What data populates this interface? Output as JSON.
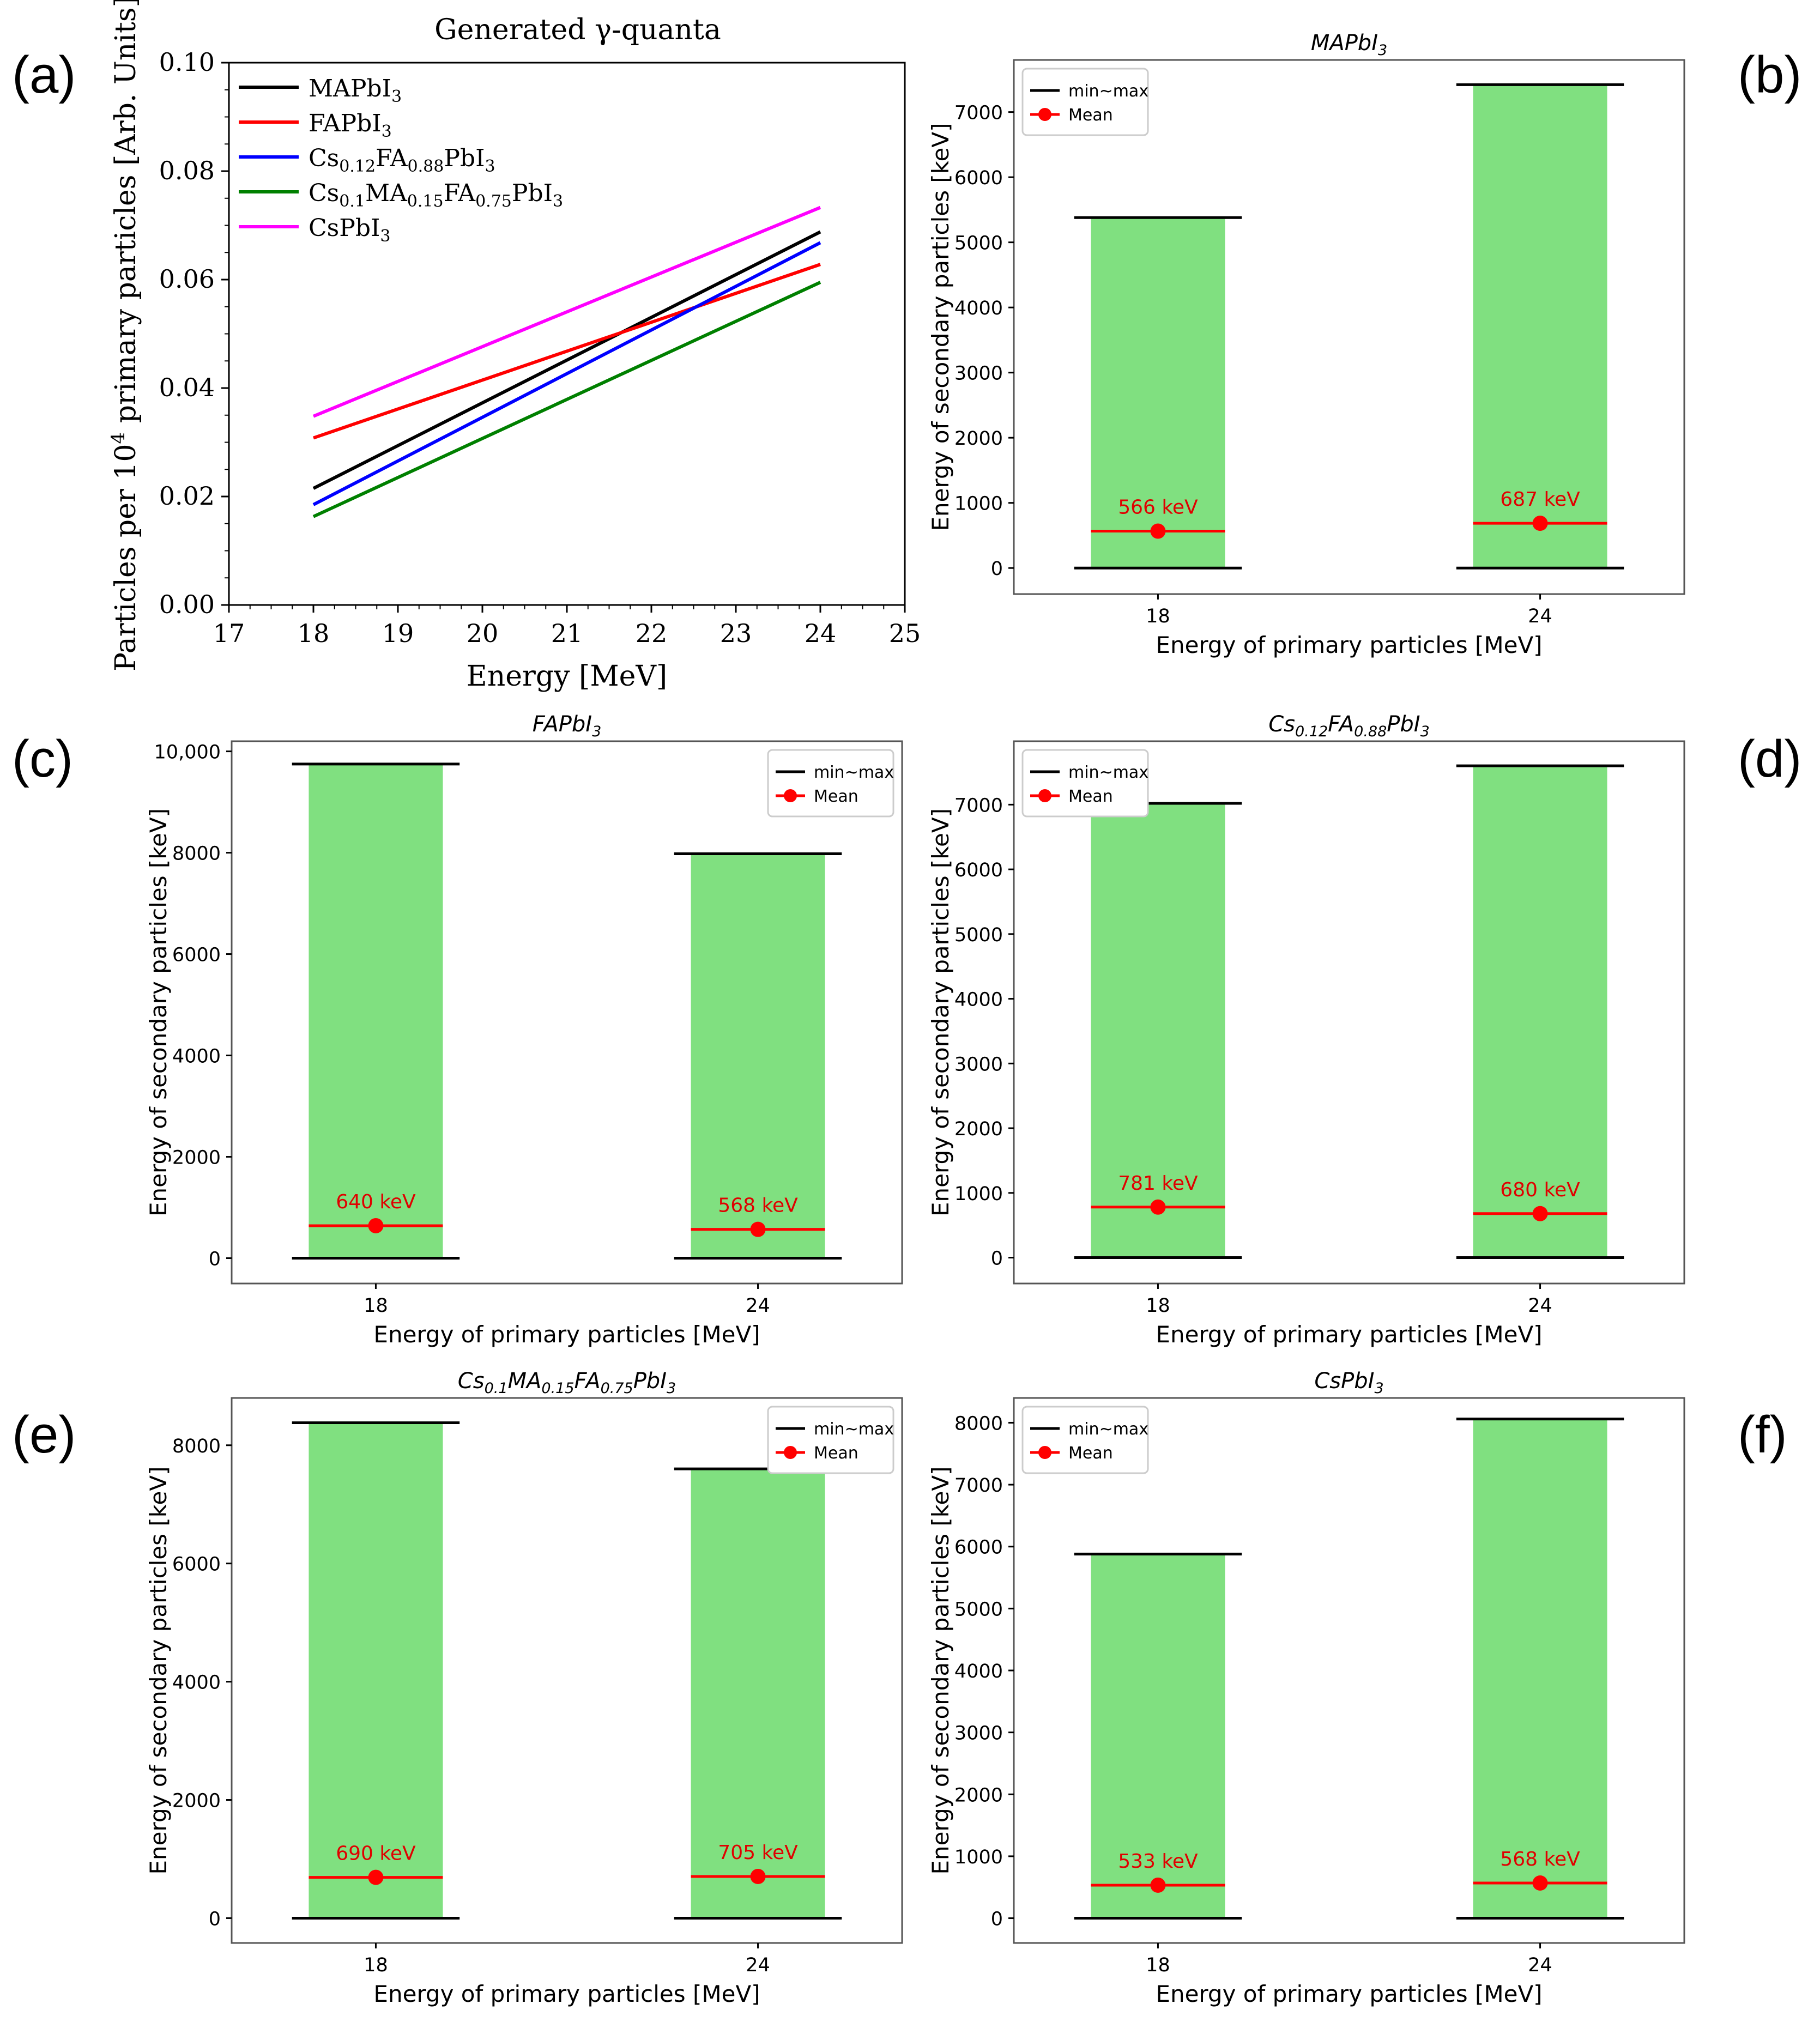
{
  "panel_labels": [
    "(a)",
    "(b)",
    "(c)",
    "(d)",
    "(e)",
    "(f)"
  ],
  "chart_data": [
    {
      "type": "line",
      "title": "Generated γ-quanta",
      "xlabel": "Energy [MeV]",
      "ylabel_pre": "Particles per 10",
      "ylabel_sup": "4",
      "ylabel_post": " primary particles [Arb. Units]",
      "xlim": [
        17,
        25
      ],
      "ylim": [
        0,
        0.1
      ],
      "xticks": [
        "17",
        "18",
        "19",
        "20",
        "21",
        "22",
        "23",
        "24",
        "25"
      ],
      "yticks": [
        "0.00",
        "0.02",
        "0.04",
        "0.06",
        "0.08",
        "0.10"
      ],
      "x": [
        18,
        24
      ],
      "series": [
        {
          "name": "MAPbI3",
          "color": "#000000",
          "values": [
            0.0215,
            0.0688
          ],
          "legend": [
            {
              "t": "MAPbI"
            },
            {
              "t": "3",
              "sub": true
            }
          ]
        },
        {
          "name": "FAPbI3",
          "color": "#ff0000",
          "values": [
            0.0308,
            0.0628
          ],
          "legend": [
            {
              "t": "FAPbI"
            },
            {
              "t": "3",
              "sub": true
            }
          ]
        },
        {
          "name": "Cs0.12FA0.88PbI3",
          "color": "#0000ff",
          "values": [
            0.0185,
            0.0668
          ],
          "legend": [
            {
              "t": "Cs"
            },
            {
              "t": "0.12",
              "sub": true
            },
            {
              "t": "FA"
            },
            {
              "t": "0.88",
              "sub": true
            },
            {
              "t": "PbI"
            },
            {
              "t": "3",
              "sub": true
            }
          ]
        },
        {
          "name": "Cs0.1MA0.15FA0.75PbI3",
          "color": "#008000",
          "values": [
            0.0163,
            0.0595
          ],
          "legend": [
            {
              "t": "Cs"
            },
            {
              "t": "0.1",
              "sub": true
            },
            {
              "t": "MA"
            },
            {
              "t": "0.15",
              "sub": true
            },
            {
              "t": "FA"
            },
            {
              "t": "0.75",
              "sub": true
            },
            {
              "t": "PbI"
            },
            {
              "t": "3",
              "sub": true
            }
          ]
        },
        {
          "name": "CsPbI3",
          "color": "#ff00ff",
          "values": [
            0.0348,
            0.0733
          ],
          "legend": [
            {
              "t": "CsPbI"
            },
            {
              "t": "3",
              "sub": true
            }
          ]
        }
      ],
      "legend_position": "upper-left"
    },
    {
      "type": "bar",
      "title": "MAPbI3",
      "title_parts": [
        {
          "t": "MAPbI"
        },
        {
          "t": "3",
          "sub": true
        }
      ],
      "xlabel": "Energy of primary particles [MeV]",
      "ylabel": "Energy of secondary particles [keV]",
      "ylim": [
        -400,
        7800
      ],
      "yticks": [
        0,
        1000,
        2000,
        3000,
        4000,
        5000,
        6000,
        7000
      ],
      "categories": [
        "18",
        "24"
      ],
      "min": [
        0,
        0
      ],
      "max": [
        5380,
        7420
      ],
      "mean": [
        566,
        687
      ],
      "mean_labels": [
        "566 keV",
        "687 keV"
      ],
      "legend": [
        "min~max",
        "Mean"
      ],
      "legend_position": "upper-left"
    },
    {
      "type": "bar",
      "title": "FAPbI3",
      "title_parts": [
        {
          "t": "FAPbI"
        },
        {
          "t": "3",
          "sub": true
        }
      ],
      "xlabel": "Energy of primary particles [MeV]",
      "ylabel": "Energy of secondary particles [keV]",
      "ylim": [
        -500,
        10200
      ],
      "yticks": [
        0,
        2000,
        4000,
        6000,
        8000,
        10000
      ],
      "ytick_labels": [
        "0",
        "2000",
        "4000",
        "6000",
        "8000",
        "10,000"
      ],
      "categories": [
        "18",
        "24"
      ],
      "min": [
        0,
        0
      ],
      "max": [
        9750,
        7980
      ],
      "mean": [
        640,
        568
      ],
      "mean_labels": [
        "640 keV",
        "568 keV"
      ],
      "legend": [
        "min~max",
        "Mean"
      ],
      "legend_position": "upper-right"
    },
    {
      "type": "bar",
      "title": "Cs0.12FA0.88PbI3",
      "title_parts": [
        {
          "t": "Cs"
        },
        {
          "t": "0.12",
          "sub": true
        },
        {
          "t": "FA"
        },
        {
          "t": "0.88",
          "sub": true
        },
        {
          "t": "PbI"
        },
        {
          "t": "3",
          "sub": true
        }
      ],
      "xlabel": "Energy of primary particles [MeV]",
      "ylabel": "Energy of secondary particles [keV]",
      "ylim": [
        -400,
        7980
      ],
      "yticks": [
        0,
        1000,
        2000,
        3000,
        4000,
        5000,
        6000,
        7000
      ],
      "categories": [
        "18",
        "24"
      ],
      "min": [
        0,
        0
      ],
      "max": [
        7020,
        7600
      ],
      "mean": [
        781,
        680
      ],
      "mean_labels": [
        "781 keV",
        "680 keV"
      ],
      "legend": [
        "min~max",
        "Mean"
      ],
      "legend_position": "upper-left"
    },
    {
      "type": "bar",
      "title": "Cs0.1MA0.15FA0.75PbI3",
      "title_parts": [
        {
          "t": "Cs"
        },
        {
          "t": "0.1",
          "sub": true
        },
        {
          "t": "MA"
        },
        {
          "t": "0.15",
          "sub": true
        },
        {
          "t": "FA"
        },
        {
          "t": "0.75",
          "sub": true
        },
        {
          "t": "PbI"
        },
        {
          "t": "3",
          "sub": true
        }
      ],
      "xlabel": "Energy of primary particles [MeV]",
      "ylabel": "Energy of secondary particles [keV]",
      "ylim": [
        -420,
        8800
      ],
      "yticks": [
        0,
        2000,
        4000,
        6000,
        8000
      ],
      "categories": [
        "18",
        "24"
      ],
      "min": [
        0,
        0
      ],
      "max": [
        8380,
        7600
      ],
      "mean": [
        690,
        705
      ],
      "mean_labels": [
        "690 keV",
        "705 keV"
      ],
      "legend": [
        "min~max",
        "Mean"
      ],
      "legend_position": "upper-right"
    },
    {
      "type": "bar",
      "title": "CsPbI3",
      "title_parts": [
        {
          "t": "CsPbI"
        },
        {
          "t": "3",
          "sub": true
        }
      ],
      "xlabel": "Energy of primary particles [MeV]",
      "ylabel": "Energy of secondary particles [keV]",
      "ylim": [
        -400,
        8400
      ],
      "yticks": [
        0,
        1000,
        2000,
        3000,
        4000,
        5000,
        6000,
        7000,
        8000
      ],
      "categories": [
        "18",
        "24"
      ],
      "min": [
        0,
        0
      ],
      "max": [
        5880,
        8060
      ],
      "mean": [
        533,
        568
      ],
      "mean_labels": [
        "533 keV",
        "568 keV"
      ],
      "legend": [
        "min~max",
        "Mean"
      ],
      "legend_position": "upper-left"
    }
  ]
}
